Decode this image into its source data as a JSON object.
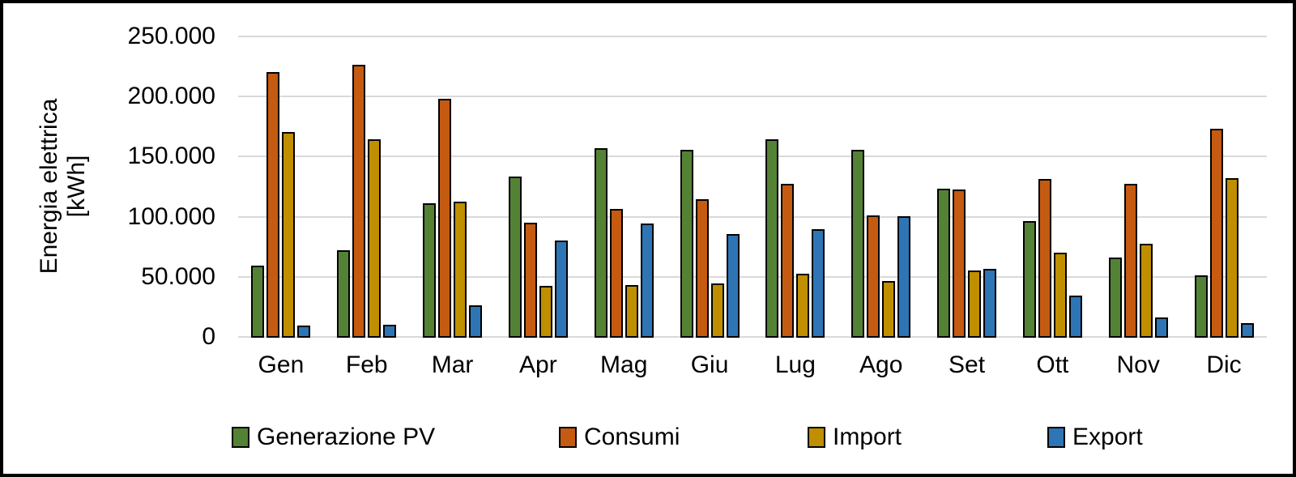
{
  "chart_data": {
    "type": "bar",
    "title": "",
    "y_axis_title_line1": "Energia elettrica",
    "y_axis_title_line2": "[kWh]",
    "categories": [
      "Gen",
      "Feb",
      "Mar",
      "Apr",
      "Mag",
      "Giu",
      "Lug",
      "Ago",
      "Set",
      "Ott",
      "Nov",
      "Dic"
    ],
    "series": [
      {
        "name": "Generazione PV",
        "color": "#548235",
        "values": [
          60000,
          73000,
          112000,
          134000,
          158000,
          156000,
          165000,
          156000,
          124000,
          97000,
          67000,
          52000
        ]
      },
      {
        "name": "Consumi",
        "color": "#C55A11",
        "values": [
          221000,
          227000,
          199000,
          96000,
          107000,
          115000,
          128000,
          102000,
          123000,
          132000,
          128000,
          174000
        ]
      },
      {
        "name": "Import",
        "color": "#BF8F00",
        "values": [
          171000,
          165000,
          113000,
          43000,
          44000,
          45000,
          53000,
          47000,
          56000,
          71000,
          78000,
          133000
        ]
      },
      {
        "name": "Export",
        "color": "#2E75B6",
        "values": [
          10000,
          11000,
          27000,
          81000,
          95000,
          86000,
          90000,
          101000,
          57000,
          35000,
          17000,
          12000
        ]
      }
    ],
    "y_axis": {
      "min": 0,
      "max": 250000,
      "step": 50000,
      "tick_labels": [
        "0",
        "50.000",
        "100.000",
        "150.000",
        "200.000",
        "250.000"
      ]
    },
    "grid": true,
    "gridline_color": "#D9D9D9",
    "axis_line_color": "#D9D9D9",
    "bar_border_color": "#000000",
    "background_color": "#FFFFFF",
    "legend_position": "bottom"
  }
}
